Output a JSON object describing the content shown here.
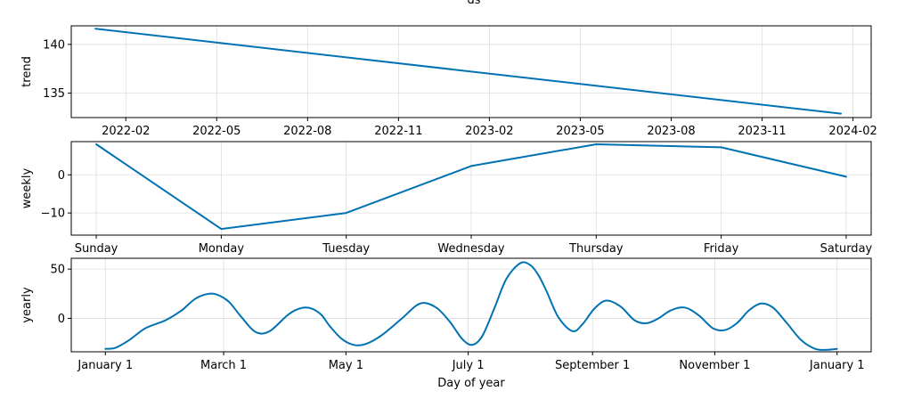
{
  "top_text": "ds",
  "colors": {
    "line": "#0072B2",
    "grid": "#dddddd"
  },
  "chart_data": [
    {
      "type": "line",
      "ylabel": "trend",
      "xlabel": "",
      "x_ticks": [
        "2022-02",
        "2022-05",
        "2022-08",
        "2022-11",
        "2023-02",
        "2023-05",
        "2023-08",
        "2023-11",
        "2024-02"
      ],
      "x_tick_values": [
        1,
        4,
        7,
        10,
        13,
        16,
        19,
        22,
        25
      ],
      "xlim": [
        -0.8,
        25.6
      ],
      "y_ticks": [
        "135",
        "140"
      ],
      "y_tick_values": [
        135,
        140
      ],
      "ylim": [
        132.5,
        141.9
      ],
      "grid": true,
      "series": [
        {
          "x": [
            0,
            24.6
          ],
          "y": [
            141.6,
            132.9
          ]
        }
      ]
    },
    {
      "type": "line",
      "ylabel": "weekly",
      "xlabel": "",
      "x_ticks": [
        "Sunday",
        "Monday",
        "Tuesday",
        "Wednesday",
        "Thursday",
        "Friday",
        "Saturday"
      ],
      "x_tick_values": [
        0,
        1,
        2,
        3,
        4,
        5,
        6
      ],
      "xlim": [
        -0.2,
        6.2
      ],
      "y_ticks": [
        "−10",
        "0"
      ],
      "y_tick_values": [
        -10,
        0
      ],
      "ylim": [
        -15.8,
        8.7
      ],
      "grid": true,
      "series": [
        {
          "x": [
            0,
            1,
            2,
            3,
            4,
            5,
            6
          ],
          "y": [
            8.0,
            -14.2,
            -10.0,
            2.3,
            8.0,
            7.2,
            -0.5
          ]
        }
      ]
    },
    {
      "type": "line",
      "ylabel": "yearly",
      "xlabel": "Day of year",
      "x_ticks": [
        "January 1",
        "March 1",
        "May 1",
        "July 1",
        "September 1",
        "November 1",
        "January 1"
      ],
      "x_tick_values": [
        0,
        59,
        120,
        181,
        243,
        304,
        365
      ],
      "xlim": [
        -17,
        382
      ],
      "y_ticks": [
        "0",
        "50"
      ],
      "y_tick_values": [
        0,
        50
      ],
      "ylim": [
        -34,
        61
      ],
      "grid": true,
      "series": [
        {
          "x": [
            0,
            5,
            12,
            20,
            30,
            38,
            45,
            52,
            57,
            62,
            68,
            75,
            82,
            92,
            100,
            107,
            112,
            118,
            124,
            130,
            138,
            148,
            157,
            165,
            172,
            178,
            183,
            188,
            194,
            200,
            207,
            212,
            216,
            220,
            226,
            233,
            238,
            244,
            250,
            257,
            264,
            270,
            276,
            282,
            289,
            296,
            303,
            309,
            315,
            321,
            327,
            333,
            340,
            347,
            354,
            360,
            365
          ],
          "y": [
            -31,
            -30,
            -22,
            -10,
            -2,
            8,
            20,
            25,
            23,
            16,
            1,
            -14,
            -13,
            5,
            11,
            5,
            -8,
            -21,
            -27,
            -26,
            -17,
            0,
            15,
            11,
            -4,
            -21,
            -27,
            -18,
            10,
            40,
            56,
            54,
            44,
            28,
            1,
            -13,
            -6,
            10,
            18,
            12,
            -2,
            -5,
            0,
            8,
            11,
            3,
            -10,
            -12,
            -5,
            8,
            15,
            11,
            -5,
            -22,
            -31,
            -32,
            -31
          ]
        }
      ]
    }
  ]
}
